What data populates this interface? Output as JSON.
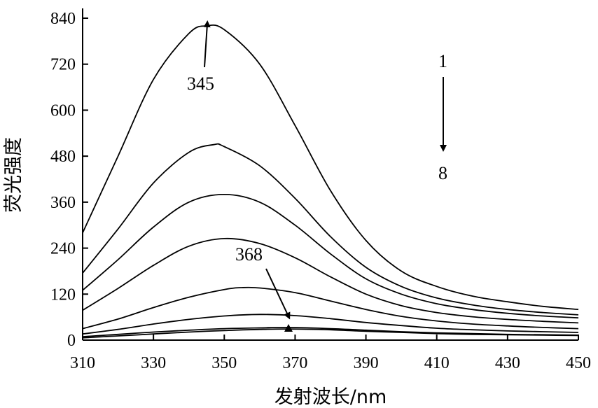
{
  "chart_data": {
    "type": "line",
    "title": "",
    "xlabel": "发射波长/nm",
    "ylabel": "荧光强度",
    "xlim": [
      310,
      450
    ],
    "ylim": [
      0,
      840
    ],
    "x_ticks": [
      310,
      330,
      350,
      370,
      390,
      410,
      430,
      450
    ],
    "y_ticks": [
      0,
      120,
      240,
      360,
      480,
      600,
      720,
      840
    ],
    "grid": false,
    "legend": "none",
    "series": [
      {
        "points": [
          [
            310,
            280
          ],
          [
            320,
            480
          ],
          [
            330,
            680
          ],
          [
            340,
            800
          ],
          [
            345,
            820
          ],
          [
            350,
            810
          ],
          [
            360,
            720
          ],
          [
            370,
            560
          ],
          [
            380,
            390
          ],
          [
            390,
            260
          ],
          [
            400,
            180
          ],
          [
            410,
            140
          ],
          [
            420,
            115
          ],
          [
            430,
            100
          ],
          [
            440,
            88
          ],
          [
            450,
            80
          ]
        ]
      },
      {
        "points": [
          [
            310,
            175
          ],
          [
            320,
            290
          ],
          [
            330,
            410
          ],
          [
            340,
            490
          ],
          [
            347,
            510
          ],
          [
            350,
            505
          ],
          [
            360,
            455
          ],
          [
            370,
            370
          ],
          [
            380,
            270
          ],
          [
            390,
            190
          ],
          [
            400,
            140
          ],
          [
            410,
            110
          ],
          [
            420,
            92
          ],
          [
            430,
            80
          ],
          [
            440,
            72
          ],
          [
            450,
            66
          ]
        ]
      },
      {
        "points": [
          [
            310,
            130
          ],
          [
            320,
            210
          ],
          [
            330,
            295
          ],
          [
            340,
            360
          ],
          [
            350,
            380
          ],
          [
            360,
            360
          ],
          [
            370,
            300
          ],
          [
            380,
            225
          ],
          [
            390,
            160
          ],
          [
            400,
            120
          ],
          [
            410,
            95
          ],
          [
            420,
            80
          ],
          [
            430,
            70
          ],
          [
            440,
            63
          ],
          [
            450,
            58
          ]
        ]
      },
      {
        "points": [
          [
            310,
            78
          ],
          [
            320,
            135
          ],
          [
            330,
            195
          ],
          [
            340,
            245
          ],
          [
            350,
            265
          ],
          [
            360,
            252
          ],
          [
            370,
            215
          ],
          [
            380,
            165
          ],
          [
            390,
            120
          ],
          [
            400,
            90
          ],
          [
            410,
            72
          ],
          [
            420,
            61
          ],
          [
            430,
            54
          ],
          [
            440,
            49
          ],
          [
            450,
            45
          ]
        ]
      },
      {
        "points": [
          [
            310,
            30
          ],
          [
            320,
            55
          ],
          [
            330,
            85
          ],
          [
            340,
            112
          ],
          [
            350,
            132
          ],
          [
            355,
            137
          ],
          [
            360,
            136
          ],
          [
            370,
            124
          ],
          [
            380,
            102
          ],
          [
            390,
            80
          ],
          [
            400,
            62
          ],
          [
            410,
            50
          ],
          [
            420,
            42
          ],
          [
            430,
            37
          ],
          [
            440,
            33
          ],
          [
            450,
            30
          ]
        ]
      },
      {
        "points": [
          [
            310,
            16
          ],
          [
            320,
            28
          ],
          [
            330,
            42
          ],
          [
            340,
            54
          ],
          [
            350,
            63
          ],
          [
            360,
            67
          ],
          [
            370,
            64
          ],
          [
            380,
            56
          ],
          [
            390,
            46
          ],
          [
            400,
            38
          ],
          [
            410,
            31
          ],
          [
            420,
            27
          ],
          [
            430,
            24
          ],
          [
            440,
            22
          ],
          [
            450,
            20
          ]
        ]
      },
      {
        "points": [
          [
            310,
            9
          ],
          [
            320,
            15
          ],
          [
            330,
            21
          ],
          [
            340,
            26
          ],
          [
            350,
            30
          ],
          [
            360,
            32
          ],
          [
            368,
            33
          ],
          [
            380,
            30
          ],
          [
            390,
            26
          ],
          [
            400,
            22
          ],
          [
            410,
            19
          ],
          [
            420,
            17
          ],
          [
            430,
            15
          ],
          [
            440,
            14
          ],
          [
            450,
            13
          ]
        ]
      },
      {
        "points": [
          [
            310,
            6
          ],
          [
            320,
            11
          ],
          [
            330,
            16
          ],
          [
            340,
            21
          ],
          [
            350,
            25
          ],
          [
            360,
            28
          ],
          [
            368,
            29
          ],
          [
            380,
            27
          ],
          [
            390,
            23
          ],
          [
            400,
            20
          ],
          [
            410,
            17
          ],
          [
            420,
            15
          ],
          [
            430,
            14
          ],
          [
            440,
            13
          ],
          [
            450,
            12
          ]
        ]
      }
    ],
    "annotations": [
      {
        "text": "345",
        "x": 345,
        "y": 820
      },
      {
        "text": "368",
        "x": 368,
        "y": 33
      },
      {
        "text": "1",
        "x": 412,
        "y": 720
      },
      {
        "text": "8",
        "x": 412,
        "y": 430
      }
    ]
  }
}
